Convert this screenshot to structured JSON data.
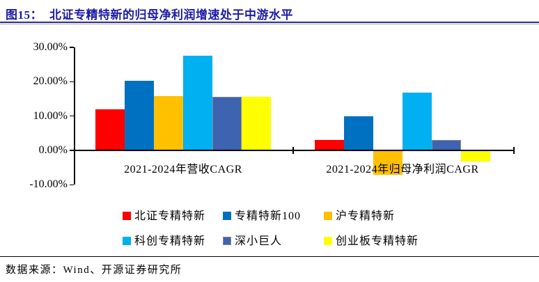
{
  "header": {
    "figure_label": "图15：",
    "title": "北证专精特新的归母净利润增速处于中游水平"
  },
  "footer": {
    "source": "数据来源：Wind、开源证券研究所"
  },
  "chart_data": {
    "type": "bar",
    "title": "北证专精特新的归母净利润增速处于中游水平",
    "categories": [
      "2021-2024年营收CAGR",
      "2021-2024年归母净利润CAGR"
    ],
    "series": [
      {
        "name": "北证专精特新",
        "color": "#FF0000",
        "values": [
          12.0,
          3.1
        ]
      },
      {
        "name": "专精特新100",
        "color": "#0070C0",
        "values": [
          20.2,
          9.9
        ]
      },
      {
        "name": "沪专精特新",
        "color": "#FFC000",
        "values": [
          15.9,
          -7.2
        ]
      },
      {
        "name": "科创专精特新",
        "color": "#00B0F0",
        "values": [
          27.6,
          16.8
        ]
      },
      {
        "name": "深小巨人",
        "color": "#3E63B0",
        "border_color": "#8C8C8C",
        "values": [
          15.6,
          3.1
        ]
      },
      {
        "name": "创业板专精特新",
        "color": "#FFFF00",
        "values": [
          15.6,
          -3.2
        ]
      }
    ],
    "unit": "%",
    "xlabel": "",
    "ylabel": "",
    "ylim": [
      -10,
      30
    ],
    "yticks": [
      {
        "label": "30.00%",
        "value": 30
      },
      {
        "label": "20.00%",
        "value": 20
      },
      {
        "label": "10.00%",
        "value": 10
      },
      {
        "label": "0.00%",
        "value": 0
      },
      {
        "label": "-10.00%",
        "value": -10
      }
    ],
    "grid": false,
    "legend_position": "bottom"
  }
}
